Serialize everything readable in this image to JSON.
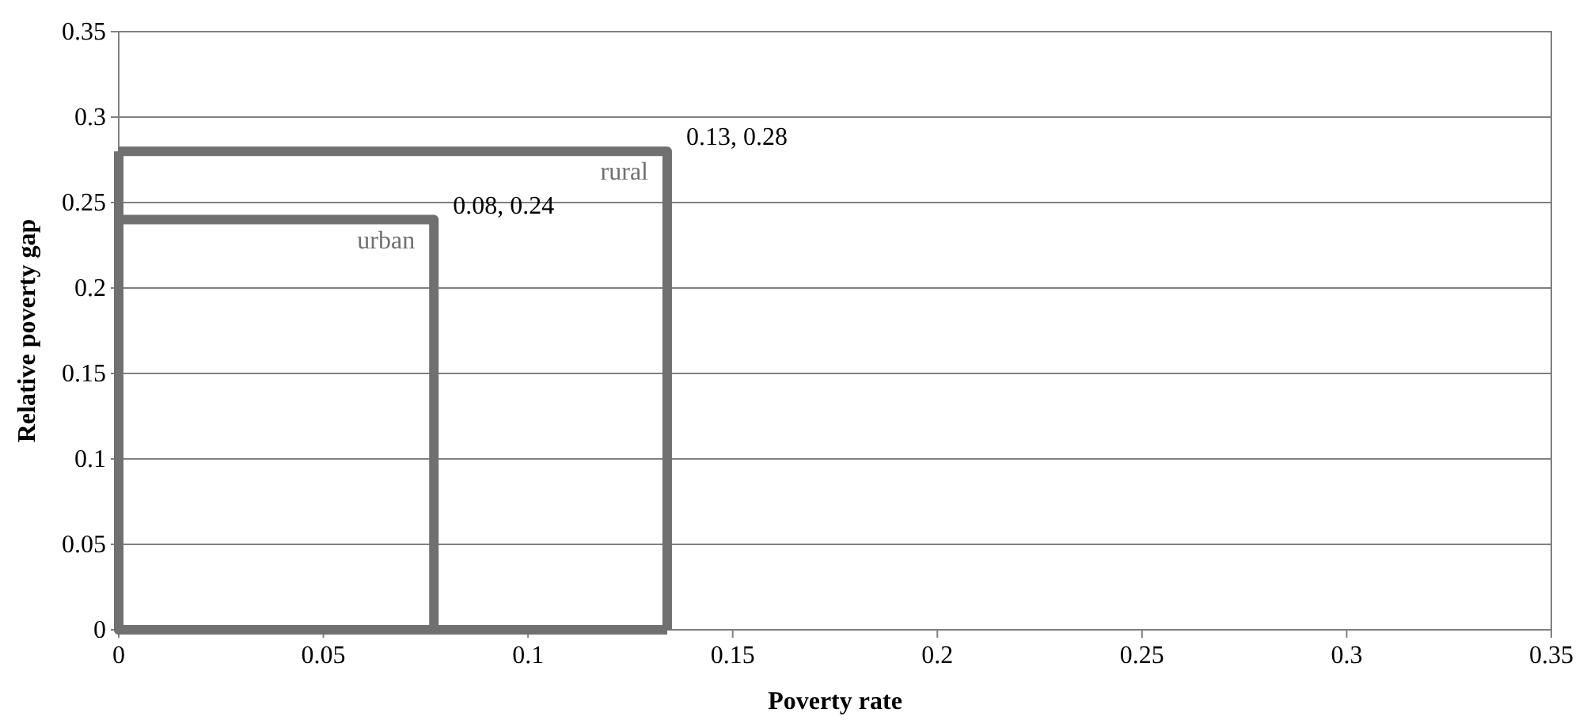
{
  "chart_data": {
    "type": "line",
    "xlabel": "Poverty rate",
    "ylabel": "Relative poverty gap",
    "series": [
      {
        "name": "urban",
        "color": "#707070",
        "x": [
          0,
          0.077,
          0.077
        ],
        "values": [
          0.24,
          0.24,
          0
        ]
      },
      {
        "name": "rural",
        "color": "#707070",
        "x": [
          0,
          0.134,
          0.134
        ],
        "values": [
          0.28,
          0.28,
          0
        ]
      }
    ],
    "annotations": [
      {
        "text": "0.08, 0.24",
        "x": 0.077,
        "y": 0.24
      },
      {
        "text": "0.13, 0.28",
        "x": 0.134,
        "y": 0.28
      }
    ],
    "xlim": [
      0,
      0.35
    ],
    "ylim": [
      0,
      0.35
    ],
    "xticks": [
      0,
      0.05,
      0.1,
      0.15,
      0.2,
      0.25,
      0.3,
      0.35
    ],
    "yticks": [
      0,
      0.05,
      0.1,
      0.15,
      0.2,
      0.25,
      0.3,
      0.35
    ],
    "grid": "y",
    "legend": false,
    "marker": "none",
    "line_style": "solid"
  }
}
